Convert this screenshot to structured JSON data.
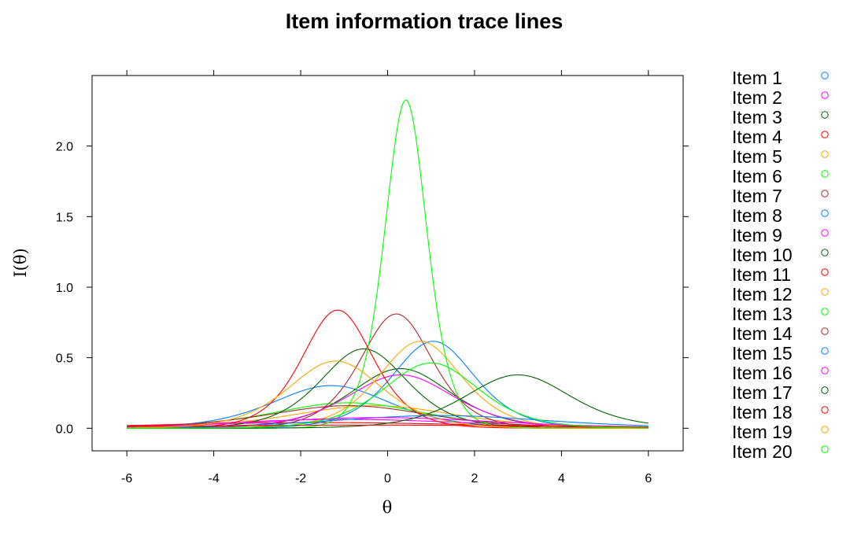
{
  "chart_data": {
    "type": "line",
    "title": "Item information trace lines",
    "xlabel": "θ",
    "ylabel": "I(θ)",
    "xlim": [
      -6.8,
      6.8
    ],
    "ylim": [
      -0.16,
      2.5
    ],
    "xticks": [
      -6,
      -4,
      -2,
      0,
      2,
      4,
      6
    ],
    "xtick_labels": [
      "-6",
      "-4",
      "-2",
      "0",
      "2",
      "4",
      "6"
    ],
    "yticks": [
      0.0,
      0.5,
      1.0,
      1.5,
      2.0
    ],
    "ytick_labels": [
      "0.0",
      "0.5",
      "1.0",
      "1.5",
      "2.0"
    ],
    "grid": false,
    "legend_position": "right",
    "series": [
      {
        "name": "Item 1",
        "color": "#0080ff",
        "a": 1.1,
        "b": -1.3
      },
      {
        "name": "Item 2",
        "color": "#ff00ff",
        "a": 0.5,
        "b": -1.0
      },
      {
        "name": "Item 3",
        "color": "#006400",
        "a": 1.3,
        "b": 0.3
      },
      {
        "name": "Item 4",
        "color": "#ff0000",
        "a": 0.4,
        "b": -1.5
      },
      {
        "name": "Item 5",
        "color": "#ffa500",
        "a": 0.8,
        "b": -0.3
      },
      {
        "name": "Item 6",
        "color": "#00ff00",
        "a": 0.85,
        "b": -0.9
      },
      {
        "name": "Item 7",
        "color": "#a52a2a",
        "a": 1.8,
        "b": 0.2
      },
      {
        "name": "Item 8",
        "color": "#0080ff",
        "a": 1.57,
        "b": 1.05
      },
      {
        "name": "Item 9",
        "color": "#ff00ff",
        "a": 1.23,
        "b": 0.3
      },
      {
        "name": "Item 10",
        "color": "#006400",
        "a": 1.5,
        "b": -0.55
      },
      {
        "name": "Item 11",
        "color": "#ff0000",
        "a": 1.83,
        "b": -1.15
      },
      {
        "name": "Item 12",
        "color": "#ffa500",
        "a": 1.57,
        "b": 0.75
      },
      {
        "name": "Item 13",
        "color": "#00ff00",
        "a": 3.05,
        "b": 0.42
      },
      {
        "name": "Item 14",
        "color": "#a52a2a",
        "a": 0.8,
        "b": -0.9
      },
      {
        "name": "Item 15",
        "color": "#0080ff",
        "a": 0.6,
        "b": 1.2
      },
      {
        "name": "Item 16",
        "color": "#ff00ff",
        "a": 0.55,
        "b": -0.2
      },
      {
        "name": "Item 17",
        "color": "#006400",
        "a": 1.23,
        "b": 3.0
      },
      {
        "name": "Item 18",
        "color": "#ff0000",
        "a": 0.3,
        "b": -0.5
      },
      {
        "name": "Item 19",
        "color": "#ffa500",
        "a": 1.38,
        "b": -1.2
      },
      {
        "name": "Item 20",
        "color": "#00ff00",
        "a": 1.36,
        "b": 1.0
      }
    ]
  }
}
